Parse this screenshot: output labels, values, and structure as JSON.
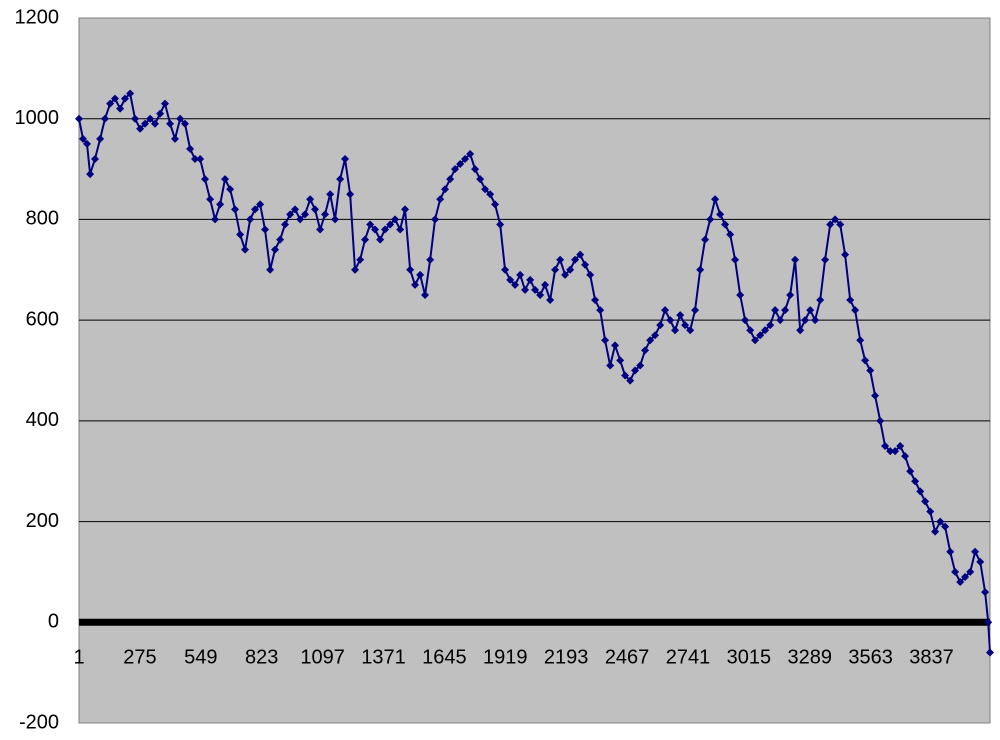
{
  "chart_data": {
    "type": "line",
    "x": [
      1,
      19,
      37,
      51,
      73,
      96,
      118,
      141,
      163,
      186,
      208,
      231,
      253,
      276,
      298,
      321,
      343,
      366,
      388,
      411,
      433,
      456,
      478,
      501,
      523,
      546,
      568,
      591,
      613,
      636,
      658,
      681,
      703,
      726,
      748,
      771,
      793,
      816,
      838,
      861,
      883,
      906,
      928,
      951,
      973,
      996,
      1018,
      1041,
      1063,
      1086,
      1108,
      1131,
      1153,
      1176,
      1198,
      1221,
      1243,
      1266,
      1288,
      1311,
      1333,
      1356,
      1378,
      1401,
      1423,
      1446,
      1468,
      1491,
      1513,
      1536,
      1558,
      1581,
      1603,
      1626,
      1648,
      1671,
      1693,
      1716,
      1738,
      1761,
      1783,
      1806,
      1828,
      1851,
      1873,
      1896,
      1918,
      1941,
      1963,
      1986,
      2008,
      2031,
      2053,
      2076,
      2098,
      2121,
      2143,
      2166,
      2188,
      2211,
      2233,
      2256,
      2278,
      2301,
      2323,
      2346,
      2368,
      2391,
      2413,
      2436,
      2458,
      2481,
      2503,
      2526,
      2548,
      2571,
      2593,
      2616,
      2638,
      2661,
      2683,
      2706,
      2728,
      2751,
      2773,
      2796,
      2818,
      2841,
      2863,
      2886,
      2908,
      2931,
      2953,
      2976,
      2998,
      3021,
      3043,
      3066,
      3088,
      3111,
      3133,
      3156,
      3178,
      3201,
      3223,
      3246,
      3268,
      3291,
      3313,
      3336,
      3358,
      3381,
      3403,
      3426,
      3448,
      3471,
      3493,
      3516,
      3538,
      3561,
      3583,
      3606,
      3628,
      3651,
      3673,
      3696,
      3718,
      3741,
      3763,
      3786,
      3808,
      3831,
      3853,
      3876,
      3898,
      3921,
      3943,
      3966,
      3988,
      4011,
      4033,
      4056,
      4078,
      4092,
      4100
    ],
    "series": [
      {
        "color": "#000080",
        "values": [
          1000,
          960,
          950,
          890,
          920,
          960,
          1000,
          1030,
          1040,
          1020,
          1040,
          1050,
          1000,
          980,
          990,
          1000,
          990,
          1010,
          1030,
          990,
          960,
          1000,
          990,
          940,
          920,
          920,
          880,
          840,
          800,
          830,
          880,
          860,
          820,
          770,
          740,
          800,
          820,
          830,
          780,
          700,
          740,
          760,
          790,
          810,
          820,
          800,
          810,
          840,
          820,
          780,
          810,
          850,
          800,
          880,
          920,
          850,
          700,
          720,
          760,
          790,
          780,
          760,
          780,
          790,
          800,
          780,
          820,
          700,
          670,
          690,
          650,
          720,
          800,
          840,
          860,
          880,
          900,
          910,
          920,
          930,
          900,
          880,
          860,
          850,
          830,
          790,
          700,
          680,
          670,
          690,
          660,
          680,
          660,
          650,
          670,
          640,
          700,
          720,
          690,
          700,
          720,
          730,
          710,
          690,
          640,
          620,
          560,
          510,
          550,
          520,
          490,
          480,
          500,
          510,
          540,
          560,
          570,
          590,
          620,
          600,
          580,
          610,
          590,
          580,
          620,
          700,
          760,
          800,
          840,
          810,
          790,
          770,
          720,
          650,
          600,
          580,
          560,
          570,
          580,
          590,
          620,
          600,
          620,
          650,
          720,
          580,
          600,
          620,
          600,
          640,
          720,
          790,
          800,
          790,
          730,
          640,
          620,
          560,
          520,
          500,
          450,
          400,
          350,
          340,
          340,
          350,
          330,
          300,
          280,
          260,
          240,
          220,
          180,
          200,
          190,
          140,
          100,
          80,
          90,
          100,
          140,
          120,
          60,
          0,
          -60
        ]
      }
    ],
    "xlim": [
      1,
      4100
    ],
    "xticks": [
      1,
      275,
      549,
      823,
      1097,
      1371,
      1645,
      1919,
      2193,
      2467,
      2741,
      3015,
      3289,
      3563,
      3837
    ],
    "ylim": [
      -200,
      1200
    ],
    "yticks": [
      -200,
      0,
      200,
      400,
      600,
      800,
      1000,
      1200
    ],
    "grid": true
  }
}
